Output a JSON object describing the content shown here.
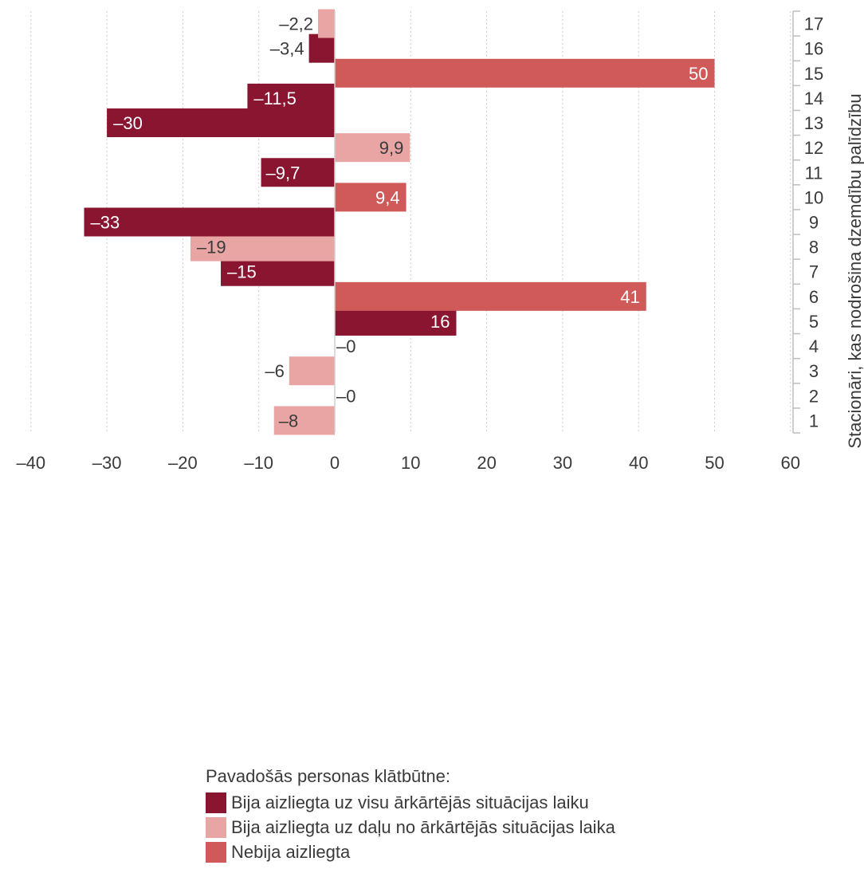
{
  "chart_data": {
    "type": "bar",
    "orientation": "horizontal",
    "ylabel": "Stacionāri, kas nodrošina dzemdību palīdzību",
    "xlabel": "",
    "xlim": [
      -40,
      60
    ],
    "xticks": [
      -40,
      -30,
      -20,
      -10,
      0,
      10,
      20,
      30,
      40,
      50,
      60
    ],
    "xtick_labels": [
      "–40",
      "–30",
      "–20",
      "–10",
      "0",
      "10",
      "20",
      "30",
      "40",
      "50",
      "60"
    ],
    "grid": "vertical dotted",
    "categories": [
      "1",
      "2",
      "3",
      "4",
      "5",
      "6",
      "7",
      "8",
      "9",
      "10",
      "11",
      "12",
      "13",
      "14",
      "15",
      "16",
      "17"
    ],
    "values": [
      -8,
      0,
      -6,
      0,
      16,
      41,
      -15,
      -19,
      -33,
      9.4,
      -9.7,
      9.9,
      -30,
      -11.5,
      50,
      -3.4,
      -2.2
    ],
    "labels": [
      "–8",
      "–0",
      "–6",
      "–0",
      "16",
      "41",
      "–15",
      "–19",
      "–33",
      "9,4",
      "–9,7",
      "9,9",
      "–30",
      "–11,5",
      "50",
      "–3,4",
      "–2,2"
    ],
    "groups": [
      1,
      1,
      1,
      1,
      0,
      2,
      0,
      1,
      0,
      2,
      0,
      1,
      0,
      0,
      2,
      0,
      1
    ],
    "legend": {
      "title": "Pavadošās personas klātbūtne:",
      "placement": "bottom",
      "items": [
        {
          "label": "Bija aizliegta uz visu ārkārtējās situācijas laiku",
          "color": "#8a1530"
        },
        {
          "label": "Bija aizliegta uz daļu no ārkārtējās situācijas laika",
          "color": "#e8a5a4"
        },
        {
          "label": "Nebija aizliegta",
          "color": "#cf5a59"
        }
      ]
    }
  }
}
